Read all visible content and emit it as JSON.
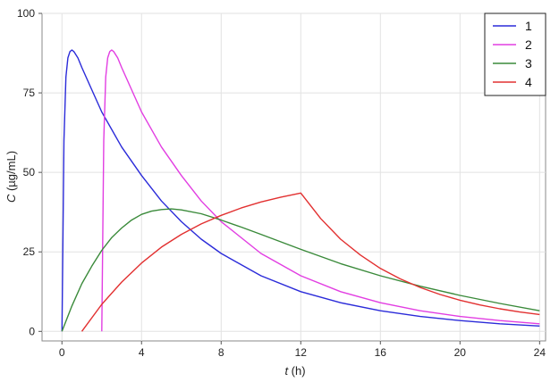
{
  "chart_data": {
    "type": "line",
    "title": "",
    "xlabel": {
      "var": "t",
      "unit": " (h)"
    },
    "ylabel": {
      "var": "C",
      "unit": " (µg/mL)"
    },
    "xlim": [
      -1,
      24.3
    ],
    "ylim": [
      -3,
      100
    ],
    "xticks": [
      0,
      4,
      8,
      12,
      16,
      20,
      24
    ],
    "yticks": [
      0,
      25,
      50,
      75,
      100
    ],
    "grid": true,
    "legend_position": "top-right",
    "series": [
      {
        "name": "1",
        "color": "#2b2bd9",
        "x": [
          0,
          0.1,
          0.2,
          0.3,
          0.4,
          0.5,
          0.6,
          0.8,
          1,
          1.5,
          2,
          3,
          4,
          5,
          6,
          7,
          8,
          10,
          12,
          14,
          16,
          18,
          20,
          22,
          24
        ],
        "y": [
          0,
          60,
          80,
          86,
          88,
          88.5,
          88,
          86,
          83,
          76,
          69,
          58,
          49,
          41,
          34.5,
          29,
          24.5,
          17.5,
          12.5,
          9,
          6.5,
          4.7,
          3.4,
          2.4,
          1.7
        ]
      },
      {
        "name": "2",
        "color": "#e23ee2",
        "x": [
          2,
          2.1,
          2.2,
          2.3,
          2.4,
          2.5,
          2.6,
          2.8,
          3,
          4,
          5,
          6,
          7,
          8,
          10,
          12,
          14,
          16,
          18,
          20,
          22,
          24
        ],
        "y": [
          0,
          60,
          80,
          86,
          88,
          88.5,
          88,
          86,
          83,
          69,
          58,
          49,
          41,
          34.5,
          24.5,
          17.5,
          12.5,
          9,
          6.5,
          4.7,
          3.4,
          2.4
        ]
      },
      {
        "name": "3",
        "color": "#3a8a3a",
        "x": [
          0,
          0.5,
          1,
          1.5,
          2,
          2.5,
          3,
          3.5,
          4,
          4.5,
          5,
          5.5,
          6,
          7,
          8,
          9,
          10,
          12,
          14,
          16,
          18,
          20,
          22,
          24
        ],
        "y": [
          0,
          8,
          15,
          20.5,
          25.5,
          29.5,
          32.5,
          35,
          36.8,
          37.8,
          38.3,
          38.5,
          38.2,
          37,
          35,
          32.8,
          30.5,
          25.8,
          21.3,
          17.5,
          14.2,
          11.3,
          8.8,
          6.5
        ]
      },
      {
        "name": "4",
        "color": "#e23030",
        "x": [
          1,
          2,
          3,
          4,
          5,
          6,
          7,
          8,
          9,
          10,
          11,
          12,
          13,
          14,
          15,
          16,
          17,
          18,
          19,
          20,
          21,
          22,
          23,
          24
        ],
        "y": [
          0,
          8.5,
          15.5,
          21.5,
          26.5,
          30.5,
          33.8,
          36.5,
          38.8,
          40.7,
          42.2,
          43.5,
          35.5,
          29,
          24,
          19.8,
          16.5,
          13.8,
          11.6,
          9.8,
          8.3,
          7.1,
          6.1,
          5.3
        ]
      }
    ]
  }
}
